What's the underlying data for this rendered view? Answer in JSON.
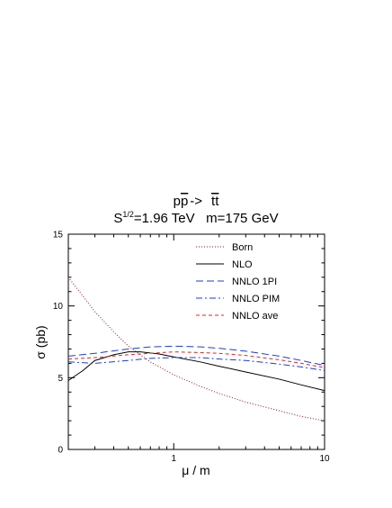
{
  "chart_data": {
    "type": "line",
    "title_line1": {
      "p": "p",
      "pbar": "p",
      "arrow": "->",
      "tt": "tt"
    },
    "title_line2": {
      "s": "S",
      "exp": "1/2",
      "rest": "=1.96 TeV   m=175 GeV"
    },
    "xlabel": "μ / m",
    "ylabel": "σ (pb)",
    "x_scale": "log",
    "xlim": [
      0.2,
      10
    ],
    "ylim": [
      0,
      15
    ],
    "x_ticks": [
      1,
      10
    ],
    "x_tick_labels": [
      "1",
      "10"
    ],
    "y_ticks": [
      0,
      5,
      10,
      15
    ],
    "y_tick_labels": [
      "0",
      "5",
      "10",
      "15"
    ],
    "grid": false,
    "legend_position": "top-right",
    "series": [
      {
        "name": "Born",
        "color": "#8b1a1a",
        "dash": "dotted",
        "x": [
          0.2,
          0.3,
          0.4,
          0.5,
          0.7,
          1.0,
          1.5,
          2.0,
          3.0,
          5.0,
          7.0,
          10.0
        ],
        "y": [
          12.0,
          9.6,
          8.2,
          7.2,
          6.1,
          5.2,
          4.4,
          3.9,
          3.3,
          2.7,
          2.3,
          2.0
        ]
      },
      {
        "name": "NLO",
        "color": "#000000",
        "dash": "solid",
        "x": [
          0.2,
          0.25,
          0.3,
          0.4,
          0.5,
          0.6,
          0.8,
          1.0,
          1.5,
          2.0,
          3.0,
          5.0,
          7.0,
          10.0
        ],
        "y": [
          4.8,
          5.5,
          6.2,
          6.6,
          6.8,
          6.8,
          6.65,
          6.45,
          6.1,
          5.8,
          5.4,
          4.9,
          4.5,
          4.1
        ]
      },
      {
        "name": "NNLO 1PI",
        "color": "#1c3fd0",
        "dash": "longdash",
        "x": [
          0.2,
          0.3,
          0.5,
          0.7,
          1.0,
          1.5,
          2.0,
          3.0,
          5.0,
          7.0,
          10.0
        ],
        "y": [
          6.5,
          6.7,
          7.0,
          7.15,
          7.2,
          7.15,
          7.05,
          6.85,
          6.5,
          6.2,
          5.85
        ]
      },
      {
        "name": "NNLO PIM",
        "color": "#1c3fd0",
        "dash": "dashdot",
        "x": [
          0.2,
          0.3,
          0.5,
          0.7,
          1.0,
          1.5,
          2.0,
          3.0,
          5.0,
          7.0,
          10.0
        ],
        "y": [
          6.1,
          6.0,
          6.2,
          6.35,
          6.4,
          6.4,
          6.3,
          6.2,
          5.95,
          5.75,
          5.5
        ]
      },
      {
        "name": "NNLO ave",
        "color": "#d42a2a",
        "dash": "shortdash",
        "x": [
          0.2,
          0.3,
          0.5,
          0.7,
          1.0,
          1.5,
          2.0,
          3.0,
          5.0,
          7.0,
          10.0
        ],
        "y": [
          6.3,
          6.4,
          6.6,
          6.7,
          6.8,
          6.75,
          6.7,
          6.55,
          6.25,
          6.0,
          5.7
        ]
      }
    ]
  }
}
